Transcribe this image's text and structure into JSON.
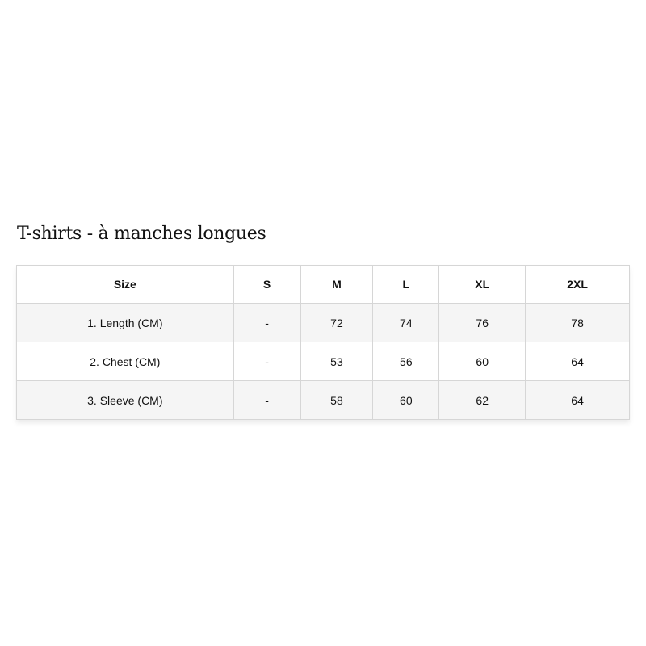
{
  "title": "T-shirts - à manches longues",
  "table": {
    "headers": [
      "Size",
      "S",
      "M",
      "L",
      "XL",
      "2XL"
    ],
    "rows": [
      [
        "1. Length (CM)",
        "-",
        "72",
        "74",
        "76",
        "78"
      ],
      [
        "2. Chest (CM)",
        "-",
        "53",
        "56",
        "60",
        "64"
      ],
      [
        "3. Sleeve (CM)",
        "-",
        "58",
        "60",
        "62",
        "64"
      ]
    ]
  }
}
